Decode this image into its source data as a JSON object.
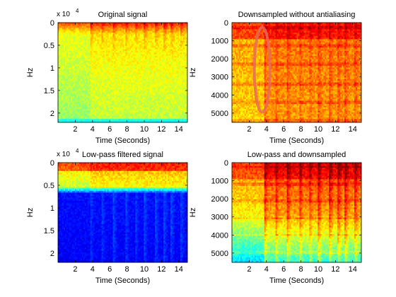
{
  "chart_data": [
    {
      "type": "heatmap",
      "title": "Original signal",
      "xlabel": "Time (Seconds)",
      "ylabel": "Hz",
      "multiplier": "x 10",
      "multiplier_exp": "4",
      "xlim": [
        0,
        15
      ],
      "ylim": [
        0,
        22050
      ],
      "y_reversed": true,
      "x_ticks": [
        "2",
        "4",
        "6",
        "8",
        "10",
        "12",
        "14"
      ],
      "x_tick_values": [
        2,
        4,
        6,
        8,
        10,
        12,
        14
      ],
      "y_ticks": [
        "0",
        "0.5",
        "1",
        "1.5",
        "2"
      ],
      "y_tick_values": [
        0,
        5000,
        10000,
        15000,
        20000
      ],
      "colormap": "jet",
      "spectral_profile": "broadband"
    },
    {
      "type": "heatmap",
      "title": "Downsampled without antialiasing",
      "xlabel": "Time (Seconds)",
      "ylabel": "Hz",
      "xlim": [
        0,
        15
      ],
      "ylim": [
        0,
        5512
      ],
      "y_reversed": true,
      "x_ticks": [
        "2",
        "4",
        "6",
        "8",
        "10",
        "12",
        "14"
      ],
      "x_tick_values": [
        2,
        4,
        6,
        8,
        10,
        12,
        14
      ],
      "y_ticks": [
        "0",
        "1000",
        "2000",
        "3000",
        "4000",
        "5000"
      ],
      "y_tick_values": [
        0,
        1000,
        2000,
        3000,
        4000,
        5000
      ],
      "colormap": "jet",
      "spectral_profile": "aliased",
      "annotation": {
        "shape": "ellipse",
        "color": "#e86a5a",
        "center_time": 3.5,
        "center_hz": 2600,
        "radius_time": 0.9,
        "radius_hz": 2350
      }
    },
    {
      "type": "heatmap",
      "title": "Low-pass filtered signal",
      "xlabel": "Time (Seconds)",
      "ylabel": "Hz",
      "multiplier": "x 10",
      "multiplier_exp": "4",
      "xlim": [
        0,
        15
      ],
      "ylim": [
        0,
        22050
      ],
      "y_reversed": true,
      "x_ticks": [
        "2",
        "4",
        "6",
        "8",
        "10",
        "12",
        "14"
      ],
      "x_tick_values": [
        2,
        4,
        6,
        8,
        10,
        12,
        14
      ],
      "y_ticks": [
        "0",
        "0.5",
        "1",
        "1.5",
        "2"
      ],
      "y_tick_values": [
        0,
        5000,
        10000,
        15000,
        20000
      ],
      "colormap": "jet",
      "spectral_profile": "lowpass",
      "cutoff_hz": 5500
    },
    {
      "type": "heatmap",
      "title": "Low-pass and downsampled",
      "xlabel": "Time (Seconds)",
      "ylabel": "Hz",
      "xlim": [
        0,
        15
      ],
      "ylim": [
        0,
        5512
      ],
      "y_reversed": true,
      "x_ticks": [
        "2",
        "4",
        "6",
        "8",
        "10",
        "12",
        "14"
      ],
      "x_tick_values": [
        2,
        4,
        6,
        8,
        10,
        12,
        14
      ],
      "y_ticks": [
        "0",
        "1000",
        "2000",
        "3000",
        "4000",
        "5000"
      ],
      "y_tick_values": [
        0,
        1000,
        2000,
        3000,
        4000,
        5000
      ],
      "colormap": "jet",
      "spectral_profile": "filtered_downsampled",
      "onsets_seconds": [
        3.7,
        5.0,
        6.4,
        7.8,
        8.9,
        10.0,
        11.3,
        12.3,
        13.1,
        14.2
      ]
    }
  ]
}
